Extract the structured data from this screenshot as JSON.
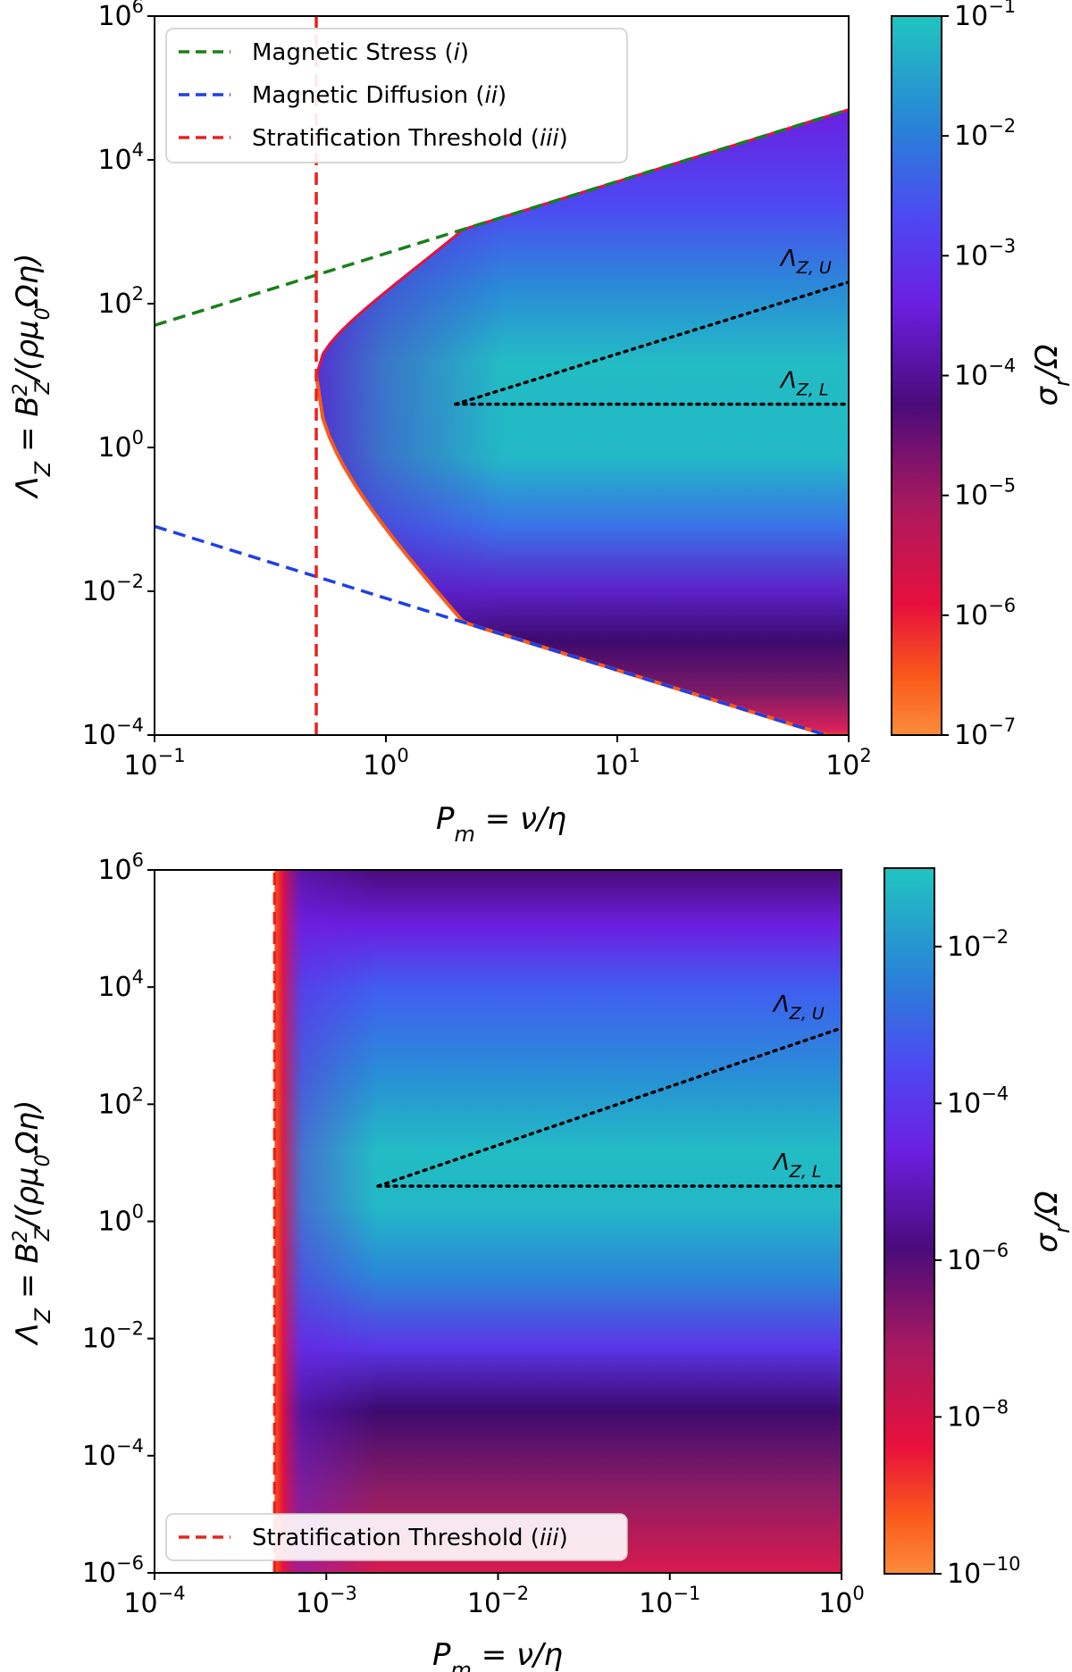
{
  "chart_data": [
    {
      "type": "heatmap",
      "panel": "top",
      "xlabel": "P_m = ν/η",
      "ylabel": "Λ_Z = B_Z^2/(ρμ_0Ωη)",
      "xscale": "log",
      "yscale": "log",
      "xlim": [
        0.1,
        100
      ],
      "ylim": [
        0.0001,
        1000000
      ],
      "x_tick_labels": [
        {
          "value": 0.1,
          "base": "10",
          "exp": "−1"
        },
        {
          "value": 1,
          "base": "10",
          "exp": "0"
        },
        {
          "value": 10,
          "base": "10",
          "exp": "1"
        },
        {
          "value": 100,
          "base": "10",
          "exp": "2"
        }
      ],
      "y_tick_labels": [
        {
          "value": 0.0001,
          "base": "10",
          "exp": "−4"
        },
        {
          "value": 0.01,
          "base": "10",
          "exp": "−2"
        },
        {
          "value": 1,
          "base": "10",
          "exp": "0"
        },
        {
          "value": 100,
          "base": "10",
          "exp": "2"
        },
        {
          "value": 10000,
          "base": "10",
          "exp": "4"
        },
        {
          "value": 1000000,
          "base": "10",
          "exp": "6"
        }
      ],
      "colorbar": {
        "label": "σ_r/Ω",
        "scale": "log",
        "range": [
          1e-07,
          0.1
        ],
        "tick_labels": [
          {
            "value": 1e-07,
            "base": "10",
            "exp": "−7"
          },
          {
            "value": 1e-06,
            "base": "10",
            "exp": "−6"
          },
          {
            "value": 1e-05,
            "base": "10",
            "exp": "−5"
          },
          {
            "value": 0.0001,
            "base": "10",
            "exp": "−4"
          },
          {
            "value": 0.001,
            "base": "10",
            "exp": "−3"
          },
          {
            "value": 0.01,
            "base": "10",
            "exp": "−2"
          },
          {
            "value": 0.1,
            "base": "10",
            "exp": "−1"
          }
        ]
      },
      "unstable_region": {
        "description": "growth rate shown where instability exists",
        "left_edge_Pm": 0.5,
        "upper_boundary": {
          "law": "Lambda = 500 * Pm"
        },
        "lower_boundary": {
          "law": "Lambda = 0.008 / Pm"
        },
        "peak_growth_rate": 0.1,
        "peak_band_Lambda": [
          2,
          100
        ]
      },
      "lines": [
        {
          "name": "Magnetic Stress (i)",
          "color": "#1a7f1a",
          "style": "dashed",
          "x": [
            0.1,
            100
          ],
          "y": [
            50,
            50000
          ]
        },
        {
          "name": "Magnetic Diffusion (ii)",
          "color": "#1f3fe6",
          "style": "dashed",
          "x": [
            0.1,
            100
          ],
          "y": [
            0.08,
            8e-05
          ]
        },
        {
          "name": "Stratification Threshold (iii)",
          "color": "#e8231d",
          "style": "dashed",
          "x": [
            0.5,
            0.5
          ],
          "y": [
            0.0001,
            1000000
          ]
        }
      ],
      "annotations": [
        {
          "label": "Λ",
          "sub": "Z, U",
          "line": {
            "x": [
              2,
              100
            ],
            "y": [
              4,
              200
            ]
          }
        },
        {
          "label": "Λ",
          "sub": "Z, L",
          "line": {
            "x": [
              2,
              100
            ],
            "y": [
              4,
              4
            ]
          }
        }
      ],
      "legend": {
        "placement": "upper-left",
        "entries": [
          {
            "text": "Magnetic Stress (",
            "italic": "i",
            "close": ")",
            "color": "#1a7f1a"
          },
          {
            "text": "Magnetic Diffusion (",
            "italic": "ii",
            "close": ")",
            "color": "#1f3fe6"
          },
          {
            "text": "Stratification Threshold (",
            "italic": "iii",
            "close": ")",
            "color": "#e8231d"
          }
        ]
      }
    },
    {
      "type": "heatmap",
      "panel": "bottom",
      "xlabel": "P_m = ν/η",
      "ylabel": "Λ_Z = B_Z^2/(ρμ_0Ωη)",
      "xscale": "log",
      "yscale": "log",
      "xlim": [
        0.0001,
        1
      ],
      "ylim": [
        1e-06,
        1000000
      ],
      "x_tick_labels": [
        {
          "value": 0.0001,
          "base": "10",
          "exp": "−4"
        },
        {
          "value": 0.001,
          "base": "10",
          "exp": "−3"
        },
        {
          "value": 0.01,
          "base": "10",
          "exp": "−2"
        },
        {
          "value": 0.1,
          "base": "10",
          "exp": "−1"
        },
        {
          "value": 1,
          "base": "10",
          "exp": "0"
        }
      ],
      "y_tick_labels": [
        {
          "value": 1e-06,
          "base": "10",
          "exp": "−6"
        },
        {
          "value": 0.0001,
          "base": "10",
          "exp": "−4"
        },
        {
          "value": 0.01,
          "base": "10",
          "exp": "−2"
        },
        {
          "value": 1,
          "base": "10",
          "exp": "0"
        },
        {
          "value": 100,
          "base": "10",
          "exp": "2"
        },
        {
          "value": 10000,
          "base": "10",
          "exp": "4"
        },
        {
          "value": 1000000,
          "base": "10",
          "exp": "6"
        }
      ],
      "colorbar": {
        "label": "σ_r/Ω",
        "scale": "log",
        "range": [
          1e-10,
          0.1
        ],
        "tick_labels": [
          {
            "value": 1e-10,
            "base": "10",
            "exp": "−10"
          },
          {
            "value": 1e-08,
            "base": "10",
            "exp": "−8"
          },
          {
            "value": 1e-06,
            "base": "10",
            "exp": "−6"
          },
          {
            "value": 0.0001,
            "base": "10",
            "exp": "−4"
          },
          {
            "value": 0.01,
            "base": "10",
            "exp": "−2"
          }
        ]
      },
      "unstable_region": {
        "description": "growth rate shown for Pm above the stratification threshold",
        "left_edge_Pm": 0.0005,
        "peak_growth_rate": 0.1,
        "peak_band_Lambda": [
          2,
          300
        ]
      },
      "lines": [
        {
          "name": "Stratification Threshold (iii)",
          "color": "#e8231d",
          "style": "dashed",
          "x": [
            0.0005,
            0.0005
          ],
          "y": [
            1e-06,
            1000000
          ]
        }
      ],
      "annotations": [
        {
          "label": "Λ",
          "sub": "Z, U",
          "line": {
            "x": [
              0.002,
              1
            ],
            "y": [
              4,
              2000
            ]
          }
        },
        {
          "label": "Λ",
          "sub": "Z, L",
          "line": {
            "x": [
              0.002,
              1
            ],
            "y": [
              4,
              4
            ]
          }
        }
      ],
      "legend": {
        "placement": "lower-left",
        "entries": [
          {
            "text": "Stratification Threshold (",
            "italic": "iii",
            "close": ")",
            "color": "#e8231d"
          }
        ]
      }
    }
  ]
}
